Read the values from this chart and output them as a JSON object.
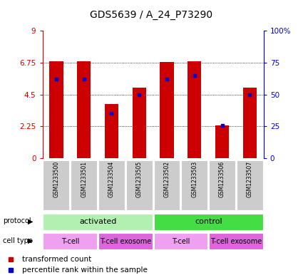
{
  "title": "GDS5639 / A_24_P73290",
  "samples": [
    "GSM1233500",
    "GSM1233501",
    "GSM1233504",
    "GSM1233505",
    "GSM1233502",
    "GSM1233503",
    "GSM1233506",
    "GSM1233507"
  ],
  "transformed_count": [
    6.85,
    6.85,
    3.85,
    5.0,
    6.8,
    6.85,
    2.3,
    5.0
  ],
  "percentile_rank": [
    62,
    62,
    35,
    50,
    62,
    65,
    26,
    50
  ],
  "ylim_left": [
    0,
    9
  ],
  "ylim_right": [
    0,
    100
  ],
  "yticks_left": [
    0,
    2.25,
    4.5,
    6.75,
    9
  ],
  "yticks_right": [
    0,
    25,
    50,
    75,
    100
  ],
  "protocol_groups": [
    {
      "label": "activated",
      "start": 0,
      "end": 4,
      "color": "#b2f0b2"
    },
    {
      "label": "control",
      "start": 4,
      "end": 8,
      "color": "#44dd44"
    }
  ],
  "cell_type_groups": [
    {
      "label": "T-cell",
      "start": 0,
      "end": 2,
      "color": "#f0a0f0"
    },
    {
      "label": "T-cell exosome",
      "start": 2,
      "end": 4,
      "color": "#dd66dd"
    },
    {
      "label": "T-cell",
      "start": 4,
      "end": 6,
      "color": "#f0a0f0"
    },
    {
      "label": "T-cell exosome",
      "start": 6,
      "end": 8,
      "color": "#dd66dd"
    }
  ],
  "bar_color": "#CC0000",
  "dot_color": "#0000CC",
  "axis_color_left": "#CC0000",
  "axis_color_right": "#0000CC",
  "sample_bg": "#CCCCCC",
  "legend_items": [
    {
      "label": "transformed count",
      "color": "#CC0000"
    },
    {
      "label": "percentile rank within the sample",
      "color": "#0000CC"
    }
  ]
}
